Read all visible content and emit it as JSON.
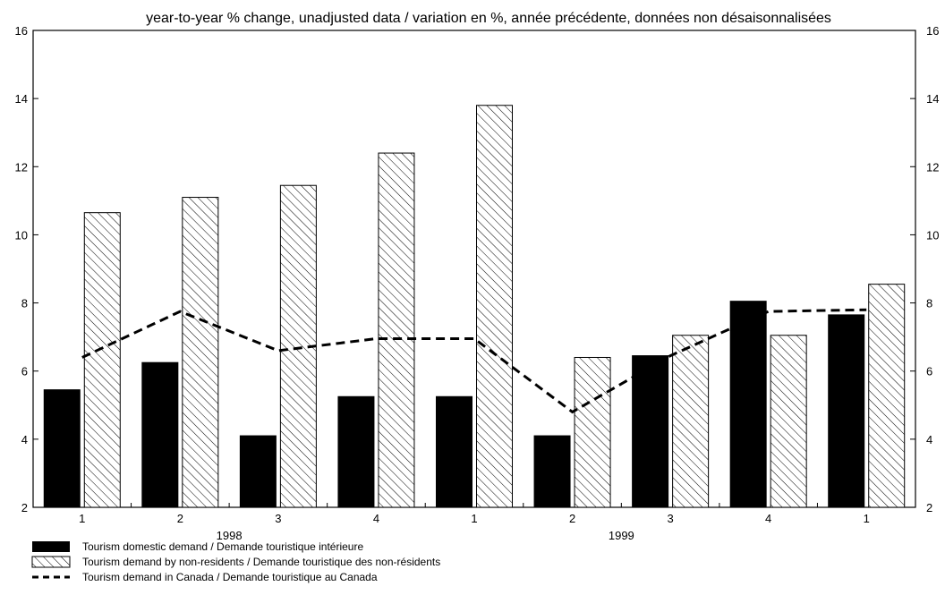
{
  "chart_data": {
    "type": "bar",
    "title": "year-to-year % change, unadjusted data / variation en %, année précédente, données non désaisonnalisées",
    "categories": [
      "1",
      "2",
      "3",
      "4",
      "1",
      "2",
      "3",
      "4",
      "1"
    ],
    "year_labels": [
      {
        "label": "1998",
        "first": 0,
        "last": 3
      },
      {
        "label": "1999",
        "first": 4,
        "last": 7
      }
    ],
    "ylim": [
      2,
      16
    ],
    "yticks": [
      2,
      4,
      6,
      8,
      10,
      12,
      14,
      16
    ],
    "grid": false,
    "legend_position": "bottom-left",
    "series": [
      {
        "name": "Tourism domestic demand / Demande touristique intérieure",
        "kind": "bar",
        "style": "solid",
        "values": [
          5.45,
          6.25,
          4.1,
          5.25,
          5.25,
          4.1,
          6.45,
          8.05,
          7.65
        ]
      },
      {
        "name": "Tourism demand by non-residents / Demande touristique des non-résidents",
        "kind": "bar",
        "style": "hatched",
        "values": [
          10.65,
          11.1,
          11.45,
          12.4,
          13.8,
          6.4,
          7.05,
          7.05,
          8.55
        ]
      },
      {
        "name": "Tourism demand in Canada / Demande touristique au Canada",
        "kind": "line",
        "style": "dashed",
        "values": [
          6.4,
          7.75,
          6.6,
          6.95,
          6.95,
          4.8,
          6.45,
          7.75,
          7.8
        ]
      }
    ]
  }
}
